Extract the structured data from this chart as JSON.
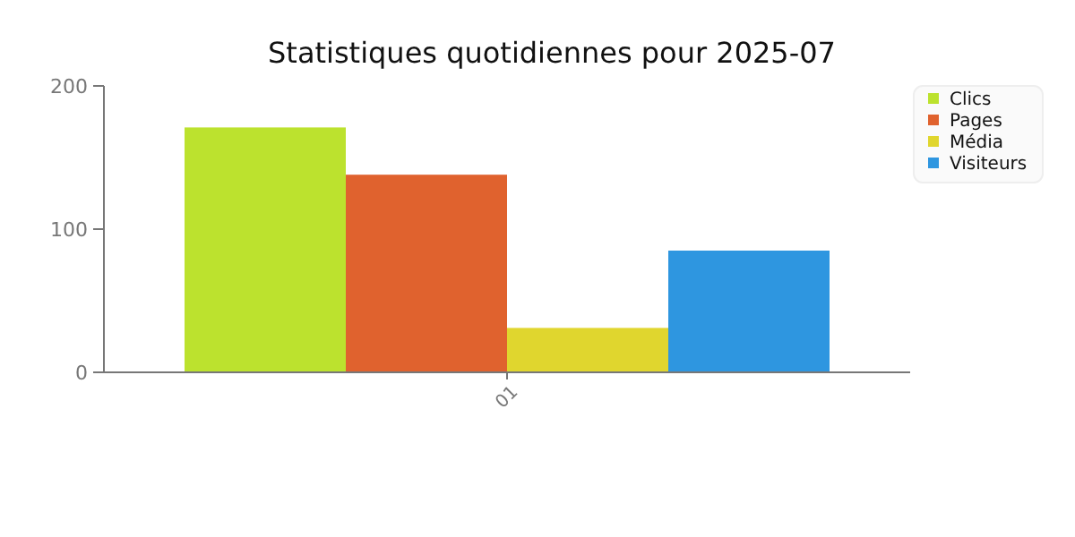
{
  "chart_data": {
    "type": "bar",
    "title": "Statistiques quotidiennes pour 2025-07",
    "categories": [
      "01"
    ],
    "series": [
      {
        "name": "Clics",
        "color": "#bce22e",
        "values": [
          171
        ]
      },
      {
        "name": "Pages",
        "color": "#e0622e",
        "values": [
          138
        ]
      },
      {
        "name": "Média",
        "color": "#e0d62e",
        "values": [
          31
        ]
      },
      {
        "name": "Visiteurs",
        "color": "#2e96e0",
        "values": [
          85
        ]
      }
    ],
    "ylim": [
      0,
      200
    ],
    "yticks": [
      0,
      100,
      200
    ],
    "legend": "top right"
  }
}
